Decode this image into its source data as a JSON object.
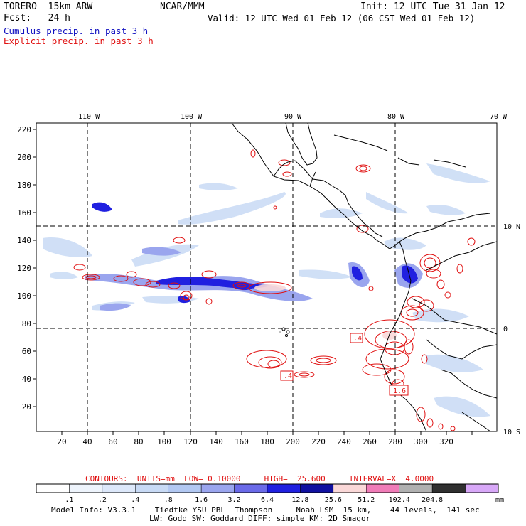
{
  "header": {
    "model": "TORERO  15km ARW",
    "org": "NCAR/MMM",
    "init": "Init: 12 UTC Tue 31 Jan 12",
    "fcst": "Fcst:   24 h",
    "valid": "Valid: 12 UTC Wed 01 Feb 12 (06 CST Wed 01 Feb 12)",
    "legend_cumulus": "Cumulus precip. in past 3 h",
    "legend_explicit": "Explicit precip. in past 3 h"
  },
  "map": {
    "top_lon_labels": [
      "110 W",
      "100 W",
      "90 W",
      "80 W",
      "70 W"
    ],
    "right_lat_labels": [
      "10 N",
      "0",
      "10 S"
    ],
    "y_ticks": [
      "220",
      "200",
      "180",
      "160",
      "140",
      "120",
      "100",
      "80",
      "60",
      "40",
      "20"
    ],
    "x_ticks": [
      "20",
      "40",
      "60",
      "80",
      "100",
      "120",
      "140",
      "160",
      "180",
      "200",
      "220",
      "240",
      "260",
      "280",
      "300",
      "320"
    ],
    "contour_labels": [
      ".4",
      "1.6"
    ]
  },
  "contours_line": "CONTOURS:  UNITS=mm  LOW= 0.10000     HIGH=  25.600     INTERVAL=X  4.0000",
  "colorbar": {
    "labels": [
      ".1",
      ".2",
      ".4",
      ".8",
      "1.6",
      "3.2",
      "6.4",
      "12.8",
      "25.6",
      "51.2",
      "102.4",
      "204.8"
    ],
    "unit": "mm",
    "colors": [
      "#ffffff",
      "#eef4fc",
      "#dde8fa",
      "#c8daf5",
      "#b2c8f2",
      "#9aa5ee",
      "#6a6ae8",
      "#2020e0",
      "#1010a0",
      "#fad8d8",
      "#f07cb8",
      "#b0b0b0",
      "#303030",
      "#d8a8f8"
    ]
  },
  "model_info": {
    "line1": "Model Info: V3.3.1    Tiedtke YSU PBL  Thompson     Noah LSM  15 km,    44 levels,  141 sec",
    "line2": "LW: Godd SW: Goddard DIFF: simple KM: 2D Smagor"
  }
}
